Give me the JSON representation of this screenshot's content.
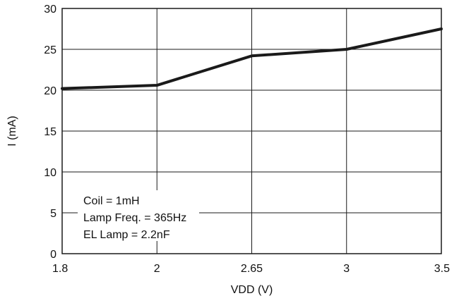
{
  "chart_data": {
    "type": "line",
    "title": "",
    "xlabel": "VDD (V)",
    "ylabel": "I (mA)",
    "x_ticks": [
      "1.8",
      "2",
      "2.65",
      "3",
      "3.5"
    ],
    "y_ticks": [
      "0",
      "5",
      "10",
      "15",
      "20",
      "25",
      "30"
    ],
    "ylim": [
      0,
      30
    ],
    "grid": true,
    "legend": "none",
    "series": [
      {
        "x": [
          1.8,
          2,
          2.65,
          3,
          3.5
        ],
        "y": [
          20.2,
          20.6,
          24.2,
          25,
          27.5
        ],
        "color": "#1a1a1a"
      }
    ],
    "annotations": [
      "Coil = 1mH",
      "Lamp Freq. = 365Hz",
      "EL Lamp = 2.2nF"
    ]
  }
}
